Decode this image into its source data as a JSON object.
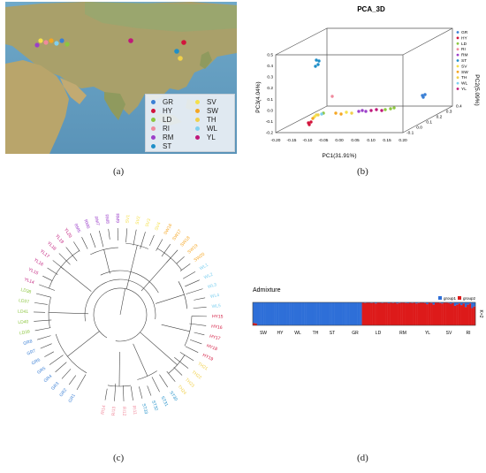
{
  "panel_labels": [
    "(a)",
    "(b)",
    "(c)",
    "(d)"
  ],
  "legend_colors": {
    "GR": "#3a7fd5",
    "HY": "#d2143c",
    "LD": "#8cc63f",
    "RI": "#f08a9c",
    "RM": "#9b3fc9",
    "ST": "#1f8fc8",
    "SV": "#f5e04a",
    "SW": "#f5a623",
    "TH": "#f0d04a",
    "WL": "#7fd0f0",
    "YL": "#c0187a"
  },
  "map_legend": {
    "left": [
      "GR",
      "HY",
      "LD",
      "RI",
      "RM",
      "ST"
    ],
    "right": [
      "SV",
      "SW",
      "TH",
      "WL",
      "YL"
    ]
  },
  "chart_data": [
    {
      "type": "scatter",
      "title": "PCA_3D",
      "xlabel": "PC1(31.91%)",
      "ylabel": "PC3(4.04%)",
      "zlabel": "PC2(5.09%)",
      "x_ticks": [
        "-0.20",
        "-0.15",
        "-0.10",
        "-0.05",
        "0.00",
        "0.05",
        "0.10",
        "0.15",
        "0.20"
      ],
      "y_ticks": [
        "-0.2",
        "-0.1",
        "0.0",
        "0.1",
        "0.2",
        "0.3",
        "0.4",
        "0.5"
      ],
      "z_ticks": [
        "-0.1",
        "0.0",
        "0.1",
        "0.2",
        "0.3",
        "0.4"
      ],
      "legend": [
        "GR",
        "HY",
        "LD",
        "RI",
        "RM",
        "ST",
        "SV",
        "SW",
        "TH",
        "WL",
        "YL"
      ]
    },
    {
      "type": "bar",
      "title": "Admixture",
      "legend": [
        "group1",
        "group2"
      ],
      "group_labels": [
        "SW",
        "HY",
        "WL",
        "TH",
        "ST",
        "GR",
        "LD",
        "RM",
        "YL",
        "SV",
        "RI"
      ],
      "k_label": "K=2",
      "series": [
        {
          "name": "group1",
          "color": "#2e6fd8"
        },
        {
          "name": "group2",
          "color": "#dd1a1a"
        }
      ],
      "blue_fraction": [
        0.9,
        0.92,
        1,
        1,
        1,
        1,
        1,
        1,
        1,
        1,
        1,
        1,
        1,
        1,
        1,
        1,
        1,
        1,
        1,
        1,
        1,
        1,
        1,
        1,
        1,
        1,
        1,
        1,
        1,
        1,
        1,
        1,
        1,
        1,
        1,
        1,
        1,
        1,
        1,
        1,
        1,
        1,
        1,
        1,
        1,
        1,
        1,
        1,
        1,
        1,
        1,
        0.02,
        0.03,
        0.02,
        0.02,
        0.03,
        0.02,
        0.05,
        0.02,
        0.02,
        0.03,
        0.02,
        0.02,
        0.04,
        0.02,
        0.03,
        0.02,
        0.05,
        0.03,
        0.02,
        0.02,
        0.03,
        0.04,
        0.02,
        0.03,
        0.02,
        0.05,
        0.03,
        0.02,
        0.02,
        0.03,
        0.08,
        0.02,
        0.03,
        0.1,
        0.02,
        0.02,
        0.03,
        0.05,
        0.02,
        0.02,
        0.03,
        0.06,
        0.03,
        0.15,
        0.1,
        0.05,
        0.12,
        0.05,
        0.2,
        0.1,
        0.05,
        0.25,
        0.18
      ]
    }
  ],
  "tree_labels": [
    "GR1",
    "GR2",
    "GR3",
    "GR4",
    "GR5",
    "GR6",
    "GR7",
    "GR8",
    "LD39",
    "LD40",
    "LD41",
    "LD37",
    "LD38",
    "YL14",
    "YL15",
    "YL16",
    "YL17",
    "YL18",
    "YL19",
    "YL20",
    "RM5",
    "RM6",
    "RM7",
    "RM8",
    "RM9",
    "SV1",
    "SV2",
    "SV3",
    "SV4",
    "SW16",
    "SW17",
    "SW18",
    "SW19",
    "SW20",
    "WL1",
    "WL2",
    "WL3",
    "WL4",
    "WL5",
    "HY15",
    "HY16",
    "HY17",
    "HY18",
    "HY19",
    "TH21",
    "TH22",
    "TH23",
    "TH24",
    "ST30",
    "ST31",
    "ST32",
    "ST33",
    "RI11",
    "RI12",
    "RI13",
    "RI14"
  ]
}
